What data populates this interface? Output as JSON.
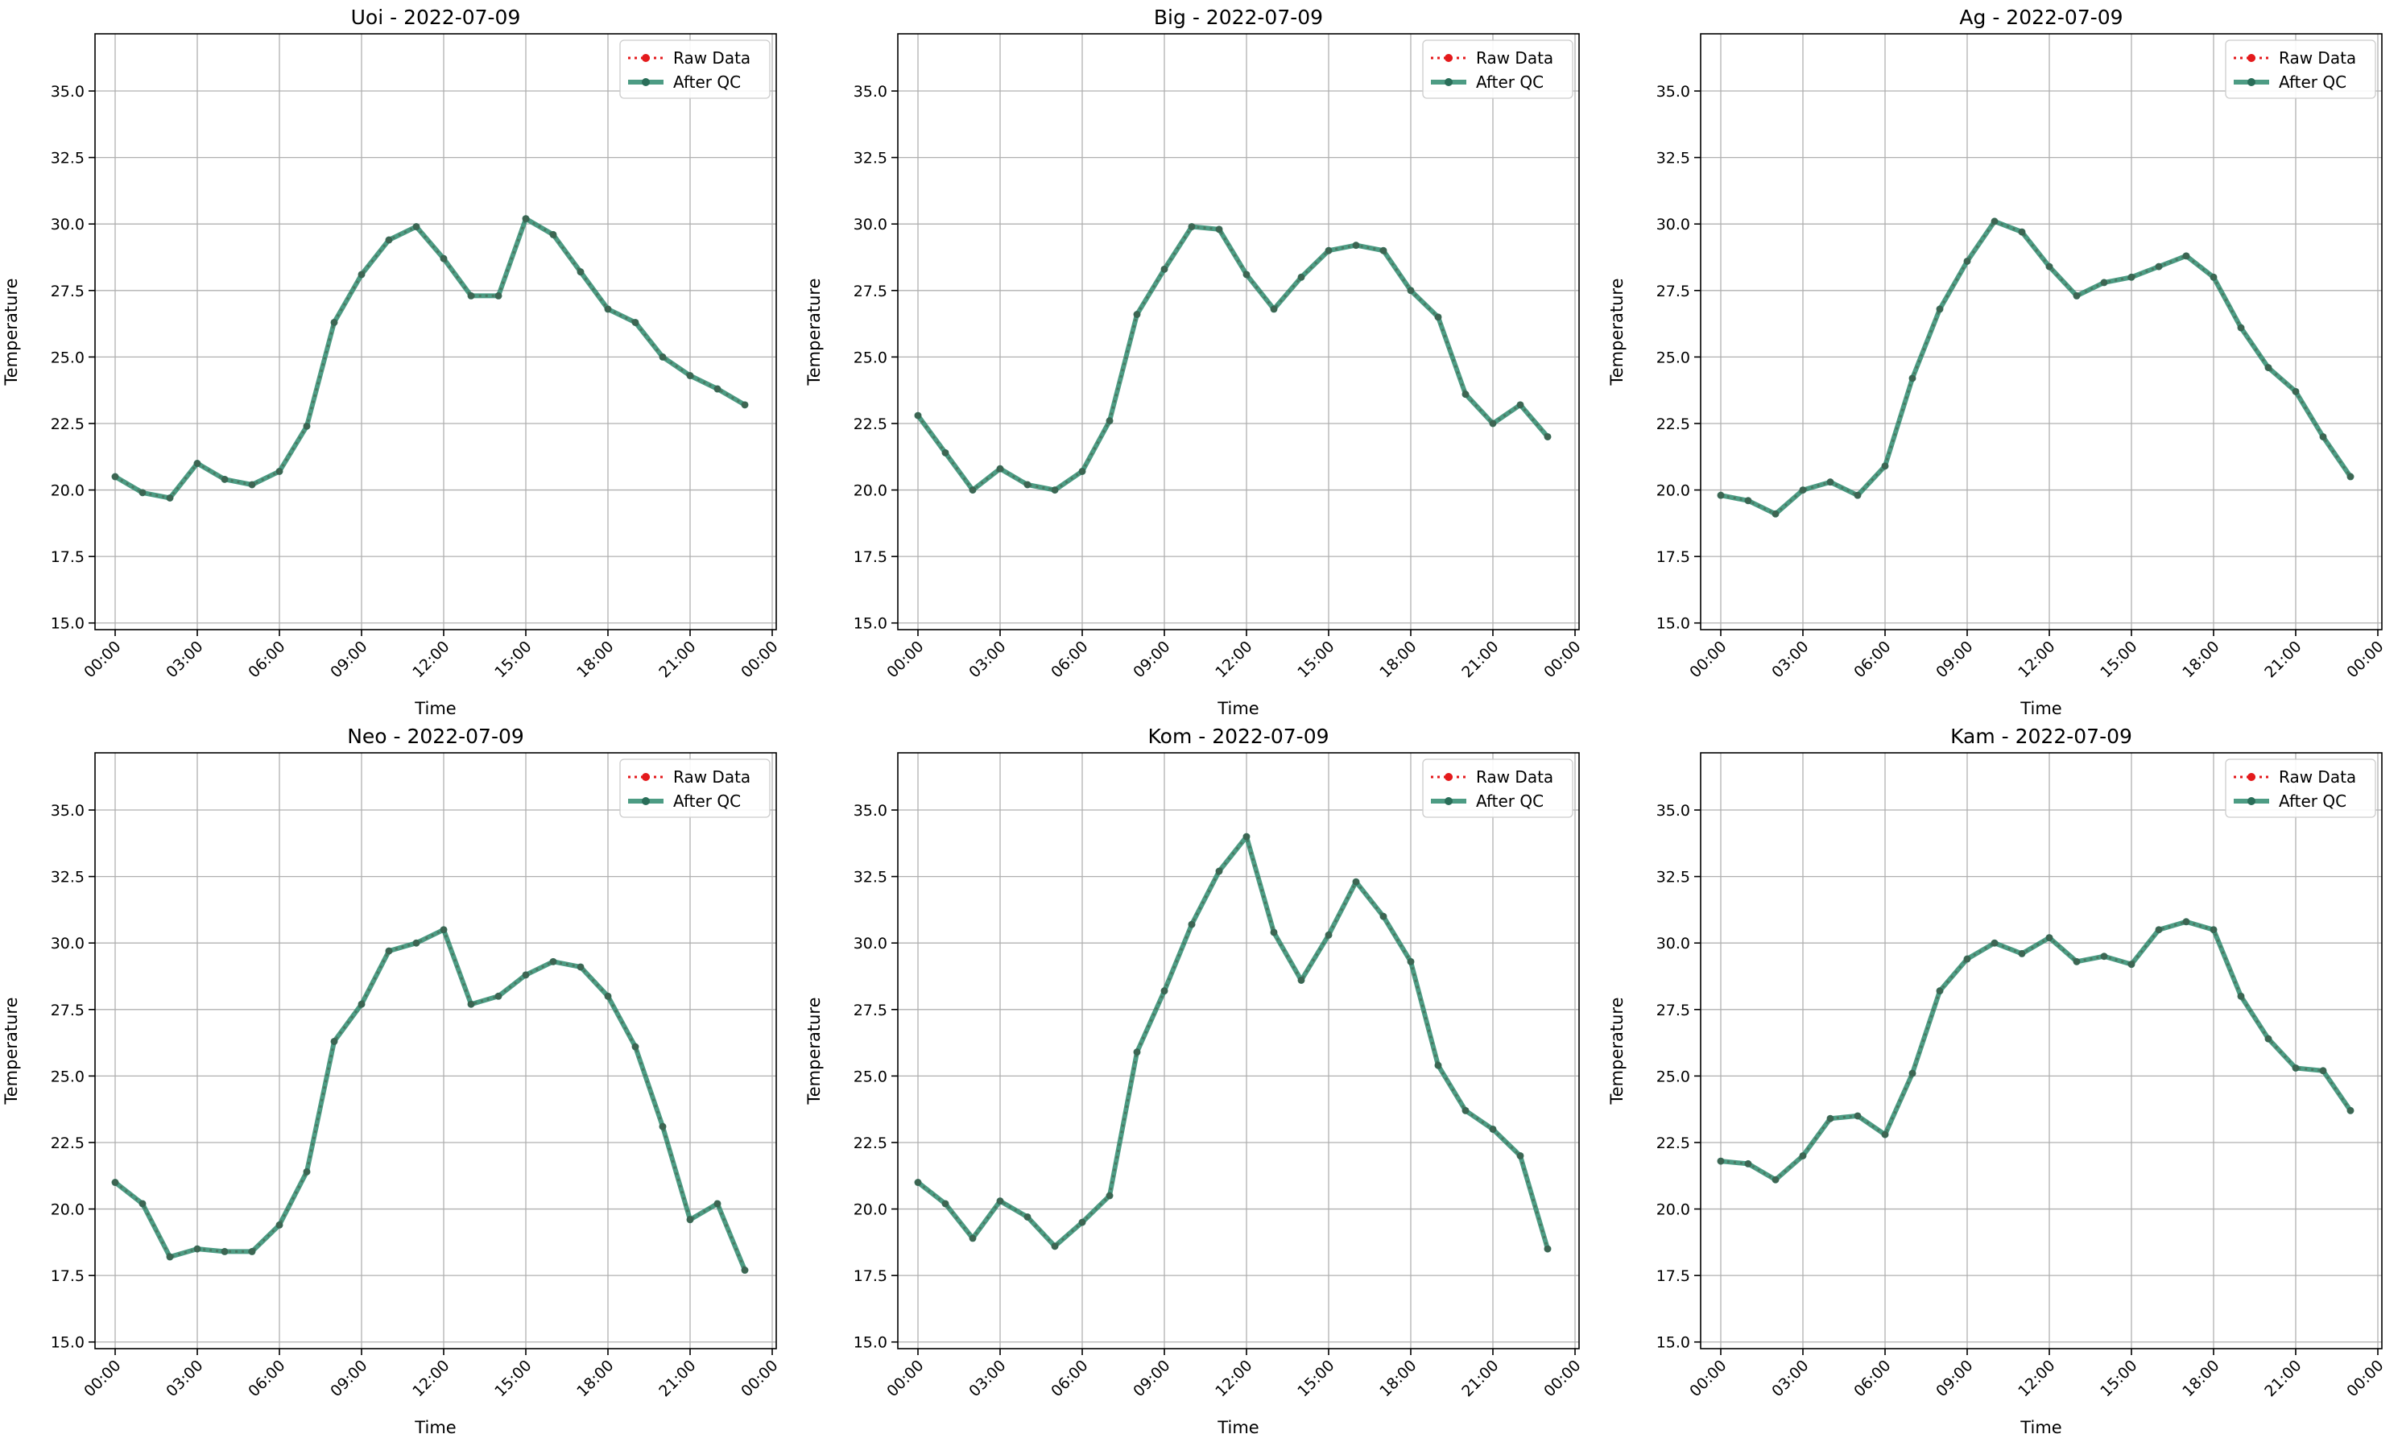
{
  "chart_data": [
    {
      "type": "line",
      "title": "Uoi - 2022-07-09",
      "xlabel": "Time",
      "ylabel": "Temperature",
      "ylim": [
        14.75,
        37.15
      ],
      "yticks": [
        "15.0",
        "17.5",
        "20.0",
        "22.5",
        "25.0",
        "27.5",
        "30.0",
        "32.5",
        "35.0"
      ],
      "xticks": [
        "00:00",
        "03:00",
        "06:00",
        "09:00",
        "12:00",
        "15:00",
        "18:00",
        "21:00",
        "00:00"
      ],
      "grid": true,
      "legend": "top-right",
      "x_hours": [
        0,
        1,
        2,
        3,
        4,
        5,
        6,
        7,
        8,
        9,
        10,
        11,
        12,
        13,
        14,
        15,
        16,
        17,
        18,
        19,
        20,
        21,
        22,
        23
      ],
      "series": [
        {
          "name": "Raw Data",
          "color": "#e41a1c",
          "values": [
            20.5,
            19.9,
            19.7,
            21.0,
            20.4,
            20.2,
            20.7,
            22.4,
            26.3,
            28.1,
            29.4,
            29.9,
            28.7,
            27.3,
            27.3,
            30.2,
            29.6,
            28.2,
            26.8,
            26.3,
            25.0,
            24.3,
            23.8,
            23.2
          ]
        },
        {
          "name": "After QC",
          "color": "#2e8b6f",
          "values": [
            20.5,
            19.9,
            19.7,
            21.0,
            20.4,
            20.2,
            20.7,
            22.4,
            26.3,
            28.1,
            29.4,
            29.9,
            28.7,
            27.3,
            27.3,
            30.2,
            29.6,
            28.2,
            26.8,
            26.3,
            25.0,
            24.3,
            23.8,
            23.2
          ]
        }
      ]
    },
    {
      "type": "line",
      "title": "Big - 2022-07-09",
      "xlabel": "Time",
      "ylabel": "Temperature",
      "ylim": [
        14.75,
        37.15
      ],
      "yticks": [
        "15.0",
        "17.5",
        "20.0",
        "22.5",
        "25.0",
        "27.5",
        "30.0",
        "32.5",
        "35.0"
      ],
      "xticks": [
        "00:00",
        "03:00",
        "06:00",
        "09:00",
        "12:00",
        "15:00",
        "18:00",
        "21:00",
        "00:00"
      ],
      "grid": true,
      "legend": "top-right",
      "x_hours": [
        0,
        1,
        2,
        3,
        4,
        5,
        6,
        7,
        8,
        9,
        10,
        11,
        12,
        13,
        14,
        15,
        16,
        17,
        18,
        19,
        20,
        21,
        22,
        23
      ],
      "series": [
        {
          "name": "Raw Data",
          "color": "#e41a1c",
          "values": [
            22.8,
            21.4,
            20.0,
            20.8,
            20.2,
            20.0,
            20.7,
            22.6,
            26.6,
            28.3,
            29.9,
            29.8,
            28.1,
            26.8,
            28.0,
            29.0,
            29.2,
            29.0,
            27.5,
            26.5,
            23.6,
            22.5,
            23.2,
            22.0
          ]
        },
        {
          "name": "After QC",
          "color": "#2e8b6f",
          "values": [
            22.8,
            21.4,
            20.0,
            20.8,
            20.2,
            20.0,
            20.7,
            22.6,
            26.6,
            28.3,
            29.9,
            29.8,
            28.1,
            26.8,
            28.0,
            29.0,
            29.2,
            29.0,
            27.5,
            26.5,
            23.6,
            22.5,
            23.2,
            22.0
          ]
        }
      ]
    },
    {
      "type": "line",
      "title": "Ag - 2022-07-09",
      "xlabel": "Time",
      "ylabel": "Temperature",
      "ylim": [
        14.75,
        37.15
      ],
      "yticks": [
        "15.0",
        "17.5",
        "20.0",
        "22.5",
        "25.0",
        "27.5",
        "30.0",
        "32.5",
        "35.0"
      ],
      "xticks": [
        "00:00",
        "03:00",
        "06:00",
        "09:00",
        "12:00",
        "15:00",
        "18:00",
        "21:00",
        "00:00"
      ],
      "grid": true,
      "legend": "top-right",
      "x_hours": [
        0,
        1,
        2,
        3,
        4,
        5,
        6,
        7,
        8,
        9,
        10,
        11,
        12,
        13,
        14,
        15,
        16,
        17,
        18,
        19,
        20,
        21,
        22,
        23
      ],
      "series": [
        {
          "name": "Raw Data",
          "color": "#e41a1c",
          "values": [
            19.8,
            19.6,
            19.1,
            20.0,
            20.3,
            19.8,
            20.9,
            24.2,
            26.8,
            28.6,
            30.1,
            29.7,
            28.4,
            27.3,
            27.8,
            28.0,
            28.4,
            28.8,
            28.0,
            26.1,
            24.6,
            23.7,
            22.0,
            20.5
          ]
        },
        {
          "name": "After QC",
          "color": "#2e8b6f",
          "values": [
            19.8,
            19.6,
            19.1,
            20.0,
            20.3,
            19.8,
            20.9,
            24.2,
            26.8,
            28.6,
            30.1,
            29.7,
            28.4,
            27.3,
            27.8,
            28.0,
            28.4,
            28.8,
            28.0,
            26.1,
            24.6,
            23.7,
            22.0,
            20.5
          ]
        }
      ]
    },
    {
      "type": "line",
      "title": "Neo - 2022-07-09",
      "xlabel": "Time",
      "ylabel": "Temperature",
      "ylim": [
        14.75,
        37.15
      ],
      "yticks": [
        "15.0",
        "17.5",
        "20.0",
        "22.5",
        "25.0",
        "27.5",
        "30.0",
        "32.5",
        "35.0"
      ],
      "xticks": [
        "00:00",
        "03:00",
        "06:00",
        "09:00",
        "12:00",
        "15:00",
        "18:00",
        "21:00",
        "00:00"
      ],
      "grid": true,
      "legend": "top-right",
      "x_hours": [
        0,
        1,
        2,
        3,
        4,
        5,
        6,
        7,
        8,
        9,
        10,
        11,
        12,
        13,
        14,
        15,
        16,
        17,
        18,
        19,
        20,
        21,
        22,
        23
      ],
      "series": [
        {
          "name": "Raw Data",
          "color": "#e41a1c",
          "values": [
            21.0,
            20.2,
            18.2,
            18.5,
            18.4,
            18.4,
            19.4,
            21.4,
            26.3,
            27.7,
            29.7,
            30.0,
            30.5,
            27.7,
            28.0,
            28.8,
            29.3,
            29.1,
            28.0,
            26.1,
            23.1,
            19.6,
            20.2,
            17.7
          ]
        },
        {
          "name": "After QC",
          "color": "#2e8b6f",
          "values": [
            21.0,
            20.2,
            18.2,
            18.5,
            18.4,
            18.4,
            19.4,
            21.4,
            26.3,
            27.7,
            29.7,
            30.0,
            30.5,
            27.7,
            28.0,
            28.8,
            29.3,
            29.1,
            28.0,
            26.1,
            23.1,
            19.6,
            20.2,
            17.7
          ]
        }
      ]
    },
    {
      "type": "line",
      "title": "Kom - 2022-07-09",
      "xlabel": "Time",
      "ylabel": "Temperature",
      "ylim": [
        14.75,
        37.15
      ],
      "yticks": [
        "15.0",
        "17.5",
        "20.0",
        "22.5",
        "25.0",
        "27.5",
        "30.0",
        "32.5",
        "35.0"
      ],
      "xticks": [
        "00:00",
        "03:00",
        "06:00",
        "09:00",
        "12:00",
        "15:00",
        "18:00",
        "21:00",
        "00:00"
      ],
      "grid": true,
      "legend": "top-right",
      "x_hours": [
        0,
        1,
        2,
        3,
        4,
        5,
        6,
        7,
        8,
        9,
        10,
        11,
        12,
        13,
        14,
        15,
        16,
        17,
        18,
        19,
        20,
        21,
        22,
        23
      ],
      "series": [
        {
          "name": "Raw Data",
          "color": "#e41a1c",
          "values": [
            21.0,
            20.2,
            18.9,
            20.3,
            19.7,
            18.6,
            19.5,
            20.5,
            25.9,
            28.2,
            30.7,
            32.7,
            34.0,
            30.4,
            28.6,
            30.3,
            32.3,
            31.0,
            29.3,
            25.4,
            23.7,
            23.0,
            22.0,
            18.5
          ]
        },
        {
          "name": "After QC",
          "color": "#2e8b6f",
          "values": [
            21.0,
            20.2,
            18.9,
            20.3,
            19.7,
            18.6,
            19.5,
            20.5,
            25.9,
            28.2,
            30.7,
            32.7,
            34.0,
            30.4,
            28.6,
            30.3,
            32.3,
            31.0,
            29.3,
            25.4,
            23.7,
            23.0,
            22.0,
            18.5
          ]
        }
      ]
    },
    {
      "type": "line",
      "title": "Kam - 2022-07-09",
      "xlabel": "Time",
      "ylabel": "Temperature",
      "ylim": [
        14.75,
        37.15
      ],
      "yticks": [
        "15.0",
        "17.5",
        "20.0",
        "22.5",
        "25.0",
        "27.5",
        "30.0",
        "32.5",
        "35.0"
      ],
      "xticks": [
        "00:00",
        "03:00",
        "06:00",
        "09:00",
        "12:00",
        "15:00",
        "18:00",
        "21:00",
        "00:00"
      ],
      "grid": true,
      "legend": "top-right",
      "x_hours": [
        0,
        1,
        2,
        3,
        4,
        5,
        6,
        7,
        8,
        9,
        10,
        11,
        12,
        13,
        14,
        15,
        16,
        17,
        18,
        19,
        20,
        21,
        22,
        23
      ],
      "series": [
        {
          "name": "Raw Data",
          "color": "#e41a1c",
          "values": [
            21.8,
            21.7,
            21.1,
            22.0,
            23.4,
            23.5,
            22.8,
            25.1,
            28.2,
            29.4,
            30.0,
            29.6,
            30.2,
            29.3,
            29.5,
            29.2,
            30.5,
            30.8,
            30.5,
            28.0,
            26.4,
            25.3,
            25.2,
            23.7
          ]
        },
        {
          "name": "After QC",
          "color": "#2e8b6f",
          "values": [
            21.8,
            21.7,
            21.1,
            22.0,
            23.4,
            23.5,
            22.8,
            25.1,
            28.2,
            29.4,
            30.0,
            29.6,
            30.2,
            29.3,
            29.5,
            29.2,
            30.5,
            30.8,
            30.5,
            28.0,
            26.4,
            25.3,
            25.2,
            23.7
          ]
        }
      ]
    }
  ]
}
